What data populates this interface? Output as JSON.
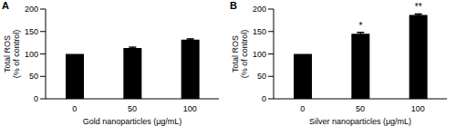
{
  "chart_data": [
    {
      "type": "bar",
      "title": "A",
      "x_label": "Gold nanoparticles (μg/mL)",
      "y_label": "Total ROS (% of control)",
      "categories": [
        "0",
        "50",
        "100"
      ],
      "values": [
        100,
        113,
        132
      ],
      "errors": [
        0,
        2,
        1.5
      ],
      "color": "#000000",
      "ylim": [
        0,
        200
      ],
      "yticks": [
        0,
        50,
        100,
        150,
        200
      ],
      "grid": false
    },
    {
      "type": "bar",
      "title": "B",
      "x_label": "Silver nanoparticles (μg/mL)",
      "y_label": "Total ROS (% of control)",
      "categories": [
        "0",
        "50",
        "100"
      ],
      "values": [
        100,
        145,
        187
      ],
      "errors": [
        0,
        3,
        2
      ],
      "annotations": [
        null,
        "*",
        "**"
      ],
      "color": "#000000",
      "ylim": [
        0,
        200
      ],
      "yticks": [
        0,
        50,
        100,
        150,
        200
      ],
      "grid": false
    }
  ]
}
